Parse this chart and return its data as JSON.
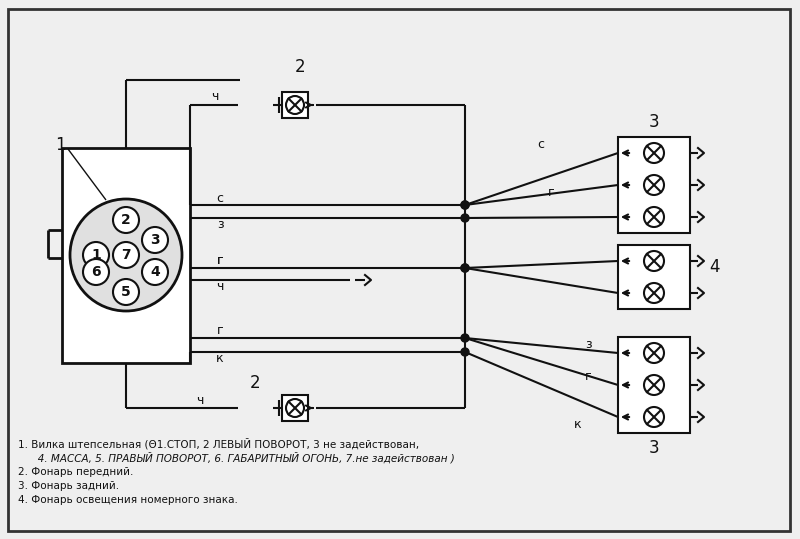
{
  "bg_color": "#efefef",
  "border_color": "#333333",
  "line_color": "#111111",
  "legend_items": [
    "1. Вилка штепсельная (Θ1.СТОП, 2 ЛЕВЫЙ ПОВОРОТ, 3 не задействован,",
    "   4. МАССА, 5. ПРАВЫЙ ПОВОРОТ, 6. ГАБАРИТНЫЙ ОГОНЬ, 7.не задействован )",
    "2. Фонарь передний.",
    "3. Фонарь задний.",
    "4. Фонарь освещения номерного знака."
  ],
  "label_1": "1",
  "label_2": "2",
  "label_3": "3",
  "label_4": "4",
  "wire_labels": {
    "c": "с",
    "z": "з",
    "g": "г",
    "ch": "ч",
    "k": "к"
  }
}
